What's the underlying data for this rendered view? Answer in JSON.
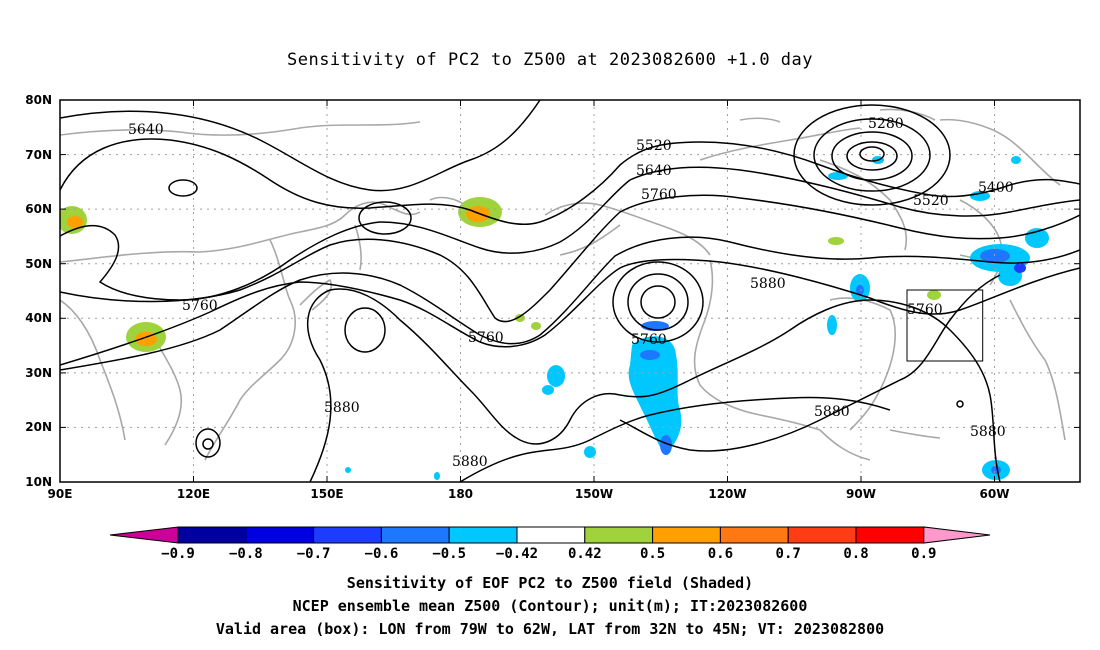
{
  "title": "Sensitivity of PC2 to Z500 at 2023082600 +1.0 day",
  "lat_labels": [
    "80N",
    "70N",
    "60N",
    "50N",
    "40N",
    "30N",
    "20N",
    "10N"
  ],
  "lon_labels": [
    "90E",
    "120E",
    "150E",
    "180",
    "150W",
    "120W",
    "90W",
    "60W"
  ],
  "contour_labels": [
    "5640",
    "5520",
    "5640",
    "5760",
    "5280",
    "5400",
    "5520",
    "5760",
    "5760",
    "5880",
    "5760",
    "5760",
    "5880",
    "5880",
    "5880",
    "5880"
  ],
  "colorbar": {
    "colors": [
      "#cc0099",
      "#0000a0",
      "#0000e0",
      "#1e3cff",
      "#1e78ff",
      "#00c8ff",
      "#ffffff",
      "#a0d23c",
      "#ffa000",
      "#ff7814",
      "#ff3c14",
      "#ff0000",
      "#ff99cc"
    ],
    "labels": [
      "-0.9",
      "-0.8",
      "-0.7",
      "-0.6",
      "-0.5",
      "-0.42",
      "0.42",
      "0.5",
      "0.6",
      "0.7",
      "0.8",
      "0.9"
    ]
  },
  "captions": [
    "Sensitivity of EOF PC2 to Z500 field (Shaded)",
    "NCEP ensemble mean Z500 (Contour); unit(m); IT:2023082600",
    "Valid area (box): LON from 79W to 62W, LAT from 32N to 45N; VT: 2023082800"
  ]
}
